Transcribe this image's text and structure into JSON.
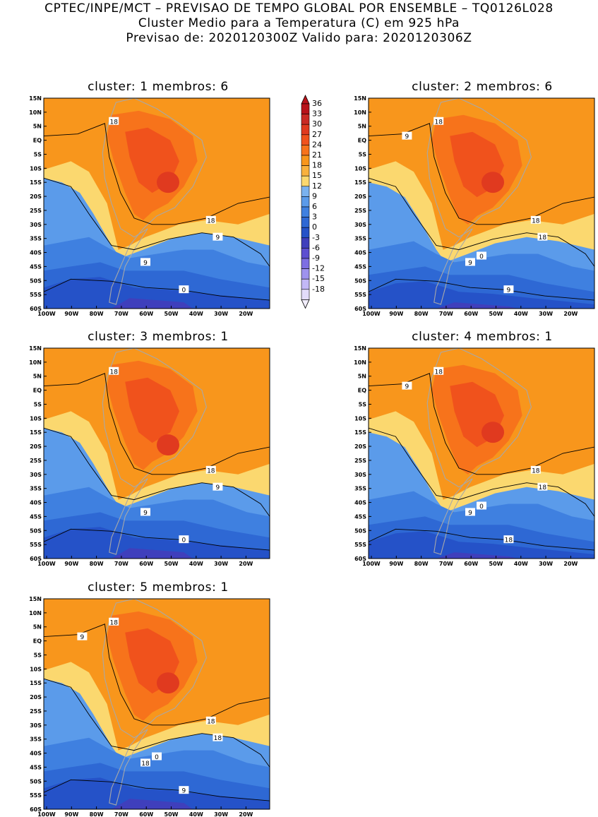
{
  "header": {
    "line1": "CPTEC/INPE/MCT – PREVISAO DE TEMPO GLOBAL POR ENSEMBLE – TQ0126L028",
    "line2": "Cluster Medio para a Temperatura (C) em 925 hPa",
    "line3": "Previsao de: 2020120300Z   Valido para: 2020120306Z"
  },
  "panels": [
    {
      "title": "cluster: 1   membros: 6"
    },
    {
      "title": "cluster: 2   membros: 6"
    },
    {
      "title": "cluster: 3   membros: 1"
    },
    {
      "title": "cluster: 4   membros: 1"
    },
    {
      "title": "cluster: 5   membros: 1"
    }
  ],
  "axes": {
    "lat_labels": [
      "15N",
      "10N",
      "5N",
      "EQ",
      "5S",
      "10S",
      "15S",
      "20S",
      "25S",
      "30S",
      "35S",
      "40S",
      "45S",
      "50S",
      "55S",
      "60S"
    ],
    "lon_labels": [
      "100W",
      "90W",
      "80W",
      "70W",
      "60W",
      "50W",
      "40W",
      "30W",
      "20W"
    ]
  },
  "contour_labels": {
    "p1": [
      "18",
      "18",
      "9",
      "9",
      "0"
    ],
    "p2": [
      "18",
      "18",
      "18",
      "9",
      "9",
      "9",
      "0"
    ],
    "p3": [
      "18",
      "18",
      "9",
      "9",
      "0"
    ],
    "p4": [
      "18",
      "18",
      "18",
      "9",
      "18",
      "9",
      "0"
    ],
    "p5": [
      "18",
      "18",
      "18",
      "18",
      "9",
      "9",
      "0"
    ]
  },
  "colorbar": {
    "levels": [
      "36",
      "33",
      "30",
      "27",
      "24",
      "21",
      "18",
      "15",
      "12",
      "9",
      "6",
      "3",
      "0",
      "-3",
      "-6",
      "-9",
      "-12",
      "-15",
      "-18"
    ],
    "colors": [
      "#b8131a",
      "#c92a24",
      "#e03a1f",
      "#f0521c",
      "#f7731b",
      "#f8961c",
      "#f9b13e",
      "#fbd86f",
      "#7ab2ef",
      "#5b9bea",
      "#3f80e0",
      "#2e68d4",
      "#2552c8",
      "#3f3fbc",
      "#5d4fd0",
      "#7d6ee2",
      "#9e92ee",
      "#c2b8f6",
      "#e2dcfb"
    ]
  }
}
